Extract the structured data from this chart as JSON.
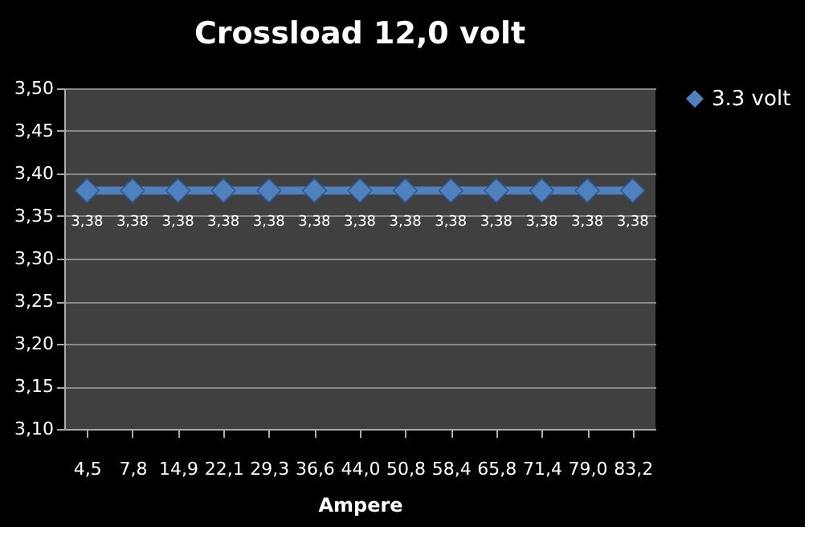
{
  "chart_data": {
    "type": "line",
    "title": "Crossload 12,0 volt",
    "xlabel": "Ampere",
    "categories": [
      "4,5",
      "7,8",
      "14,9",
      "22,1",
      "29,3",
      "36,6",
      "44,0",
      "50,8",
      "58,4",
      "65,8",
      "71,4",
      "79,0",
      "83,2"
    ],
    "series": [
      {
        "name": "3.3 volt",
        "color": "#4f81bd",
        "values": [
          3.38,
          3.38,
          3.38,
          3.38,
          3.38,
          3.38,
          3.38,
          3.38,
          3.38,
          3.38,
          3.38,
          3.38,
          3.38
        ],
        "value_labels": [
          "3,38",
          "3,38",
          "3,38",
          "3,38",
          "3,38",
          "3,38",
          "3,38",
          "3,38",
          "3,38",
          "3,38",
          "3,38",
          "3,38",
          "3,38"
        ]
      }
    ],
    "ylim": [
      3.1,
      3.5
    ],
    "yticks": [
      {
        "value": 3.1,
        "label": "3,10"
      },
      {
        "value": 3.15,
        "label": "3,15"
      },
      {
        "value": 3.2,
        "label": "3,20"
      },
      {
        "value": 3.25,
        "label": "3,25"
      },
      {
        "value": 3.3,
        "label": "3,30"
      },
      {
        "value": 3.35,
        "label": "3,35"
      },
      {
        "value": 3.4,
        "label": "3,40"
      },
      {
        "value": 3.45,
        "label": "3,45"
      },
      {
        "value": 3.5,
        "label": "3,50"
      }
    ],
    "grid": "y",
    "legend": "right",
    "marker": "diamond",
    "line_style": "solid"
  }
}
